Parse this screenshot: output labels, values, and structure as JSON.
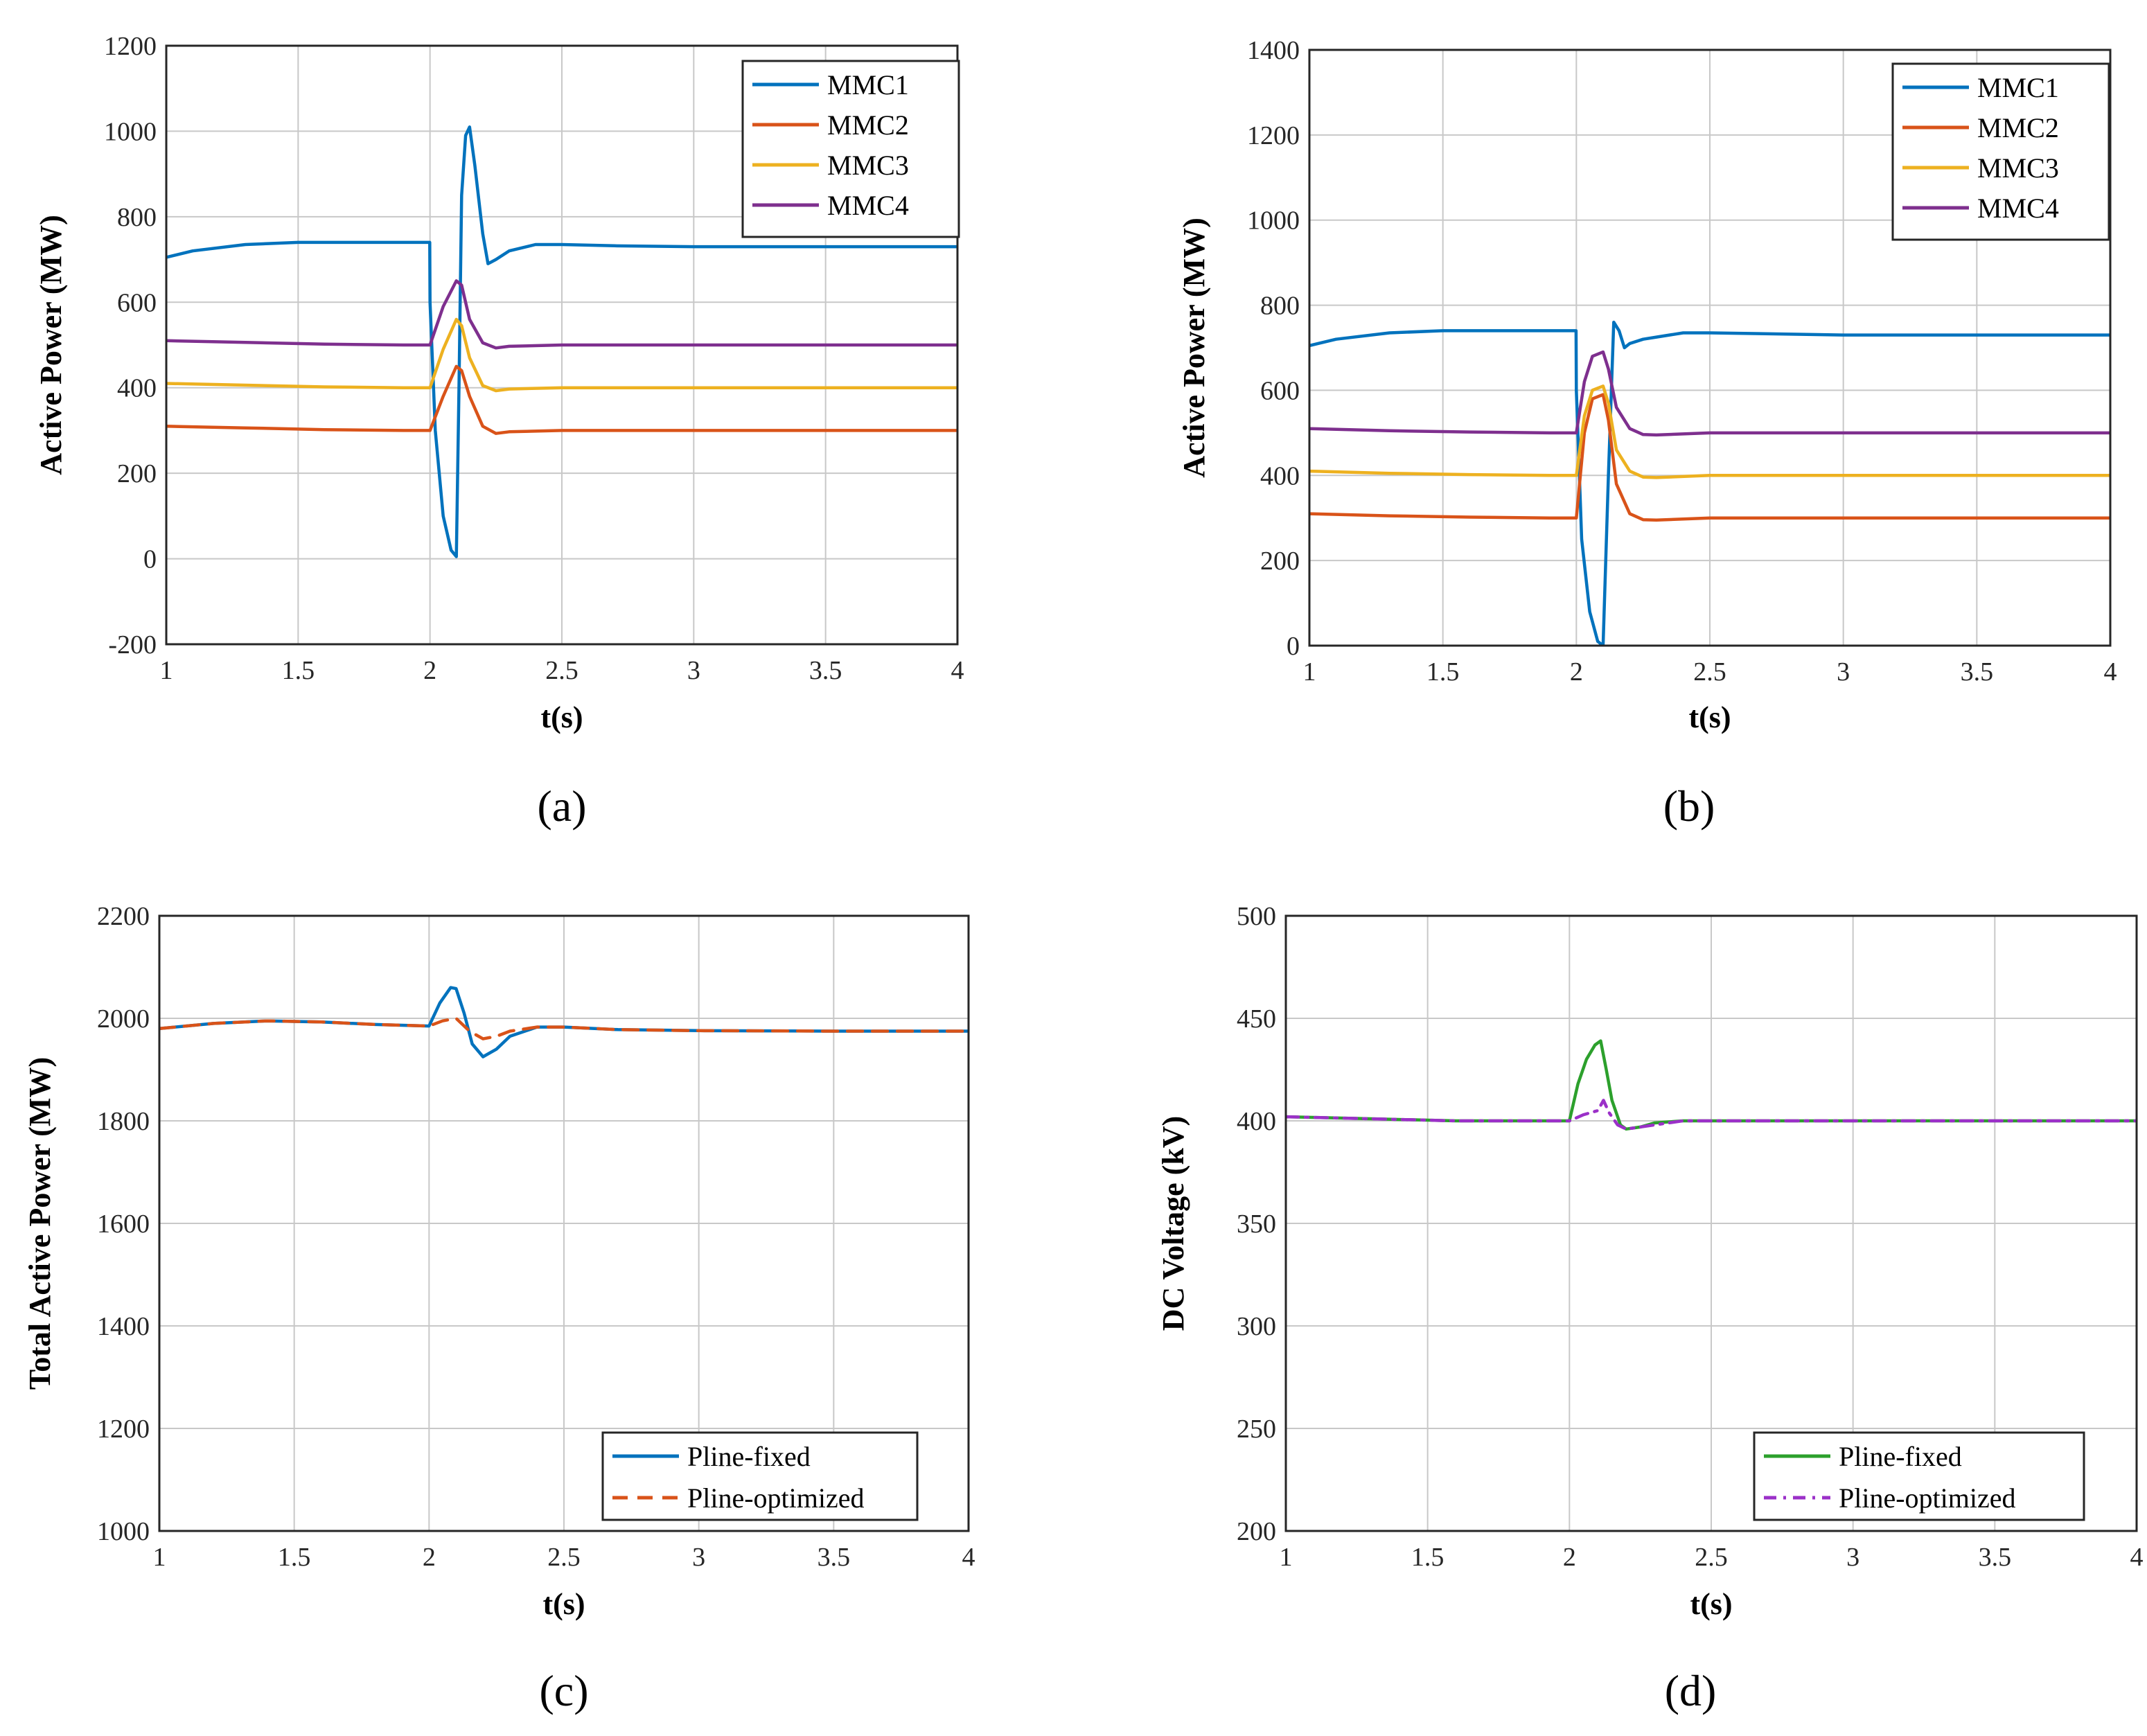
{
  "chart_data": [
    {
      "type": "line",
      "panel_label": "(a)",
      "xlabel": "t(s)",
      "ylabel": "Active Power (MW)",
      "xlim": [
        1,
        4
      ],
      "ylim": [
        -200,
        1200
      ],
      "xticks": [
        1,
        1.5,
        2,
        2.5,
        3,
        3.5,
        4
      ],
      "xtick_labels": [
        "1",
        "1.5",
        "2",
        "2.5",
        "3",
        "3.5",
        "4"
      ],
      "yticks": [
        -200,
        0,
        200,
        400,
        600,
        800,
        1000,
        1200
      ],
      "ytick_labels": [
        "-200",
        "0",
        "200",
        "400",
        "600",
        "800",
        "1000",
        "1200"
      ],
      "grid": true,
      "legend_position": "top-right",
      "series": [
        {
          "name": "MMC1",
          "color": "#0072BD",
          "dash": "solid",
          "x": [
            1,
            1.1,
            1.3,
            1.5,
            1.7,
            1.9,
            1.999,
            2.0,
            2.02,
            2.05,
            2.08,
            2.1,
            2.11,
            2.12,
            2.135,
            2.15,
            2.17,
            2.2,
            2.22,
            2.25,
            2.3,
            2.4,
            2.5,
            2.7,
            3.0,
            3.5,
            4
          ],
          "y": [
            705,
            720,
            735,
            740,
            740,
            740,
            740,
            600,
            300,
            100,
            20,
            5,
            400,
            850,
            990,
            1010,
            920,
            760,
            690,
            700,
            720,
            735,
            735,
            732,
            730,
            730,
            730
          ]
        },
        {
          "name": "MMC2",
          "color": "#D95319",
          "dash": "solid",
          "x": [
            1,
            1.3,
            1.6,
            1.9,
            2.0,
            2.05,
            2.1,
            2.12,
            2.15,
            2.2,
            2.25,
            2.3,
            2.5,
            3,
            4
          ],
          "y": [
            310,
            306,
            302,
            300,
            300,
            380,
            450,
            440,
            380,
            310,
            293,
            297,
            300,
            300,
            300
          ]
        },
        {
          "name": "MMC3",
          "color": "#EDB120",
          "dash": "solid",
          "x": [
            1,
            1.3,
            1.6,
            1.9,
            2.0,
            2.05,
            2.1,
            2.12,
            2.15,
            2.2,
            2.25,
            2.3,
            2.5,
            3,
            4
          ],
          "y": [
            410,
            406,
            402,
            400,
            400,
            490,
            560,
            545,
            470,
            405,
            393,
            397,
            400,
            400,
            400
          ]
        },
        {
          "name": "MMC4",
          "color": "#7E2F8E",
          "dash": "solid",
          "x": [
            1,
            1.3,
            1.6,
            1.9,
            2.0,
            2.05,
            2.1,
            2.12,
            2.15,
            2.2,
            2.25,
            2.3,
            2.5,
            3,
            4
          ],
          "y": [
            510,
            506,
            502,
            500,
            500,
            590,
            650,
            640,
            560,
            505,
            493,
            497,
            500,
            500,
            500
          ]
        }
      ]
    },
    {
      "type": "line",
      "panel_label": "(b)",
      "xlabel": "t(s)",
      "ylabel": "Active Power (MW)",
      "xlim": [
        1,
        4
      ],
      "ylim": [
        0,
        1400
      ],
      "xticks": [
        1,
        1.5,
        2,
        2.5,
        3,
        3.5,
        4
      ],
      "xtick_labels": [
        "1",
        "1.5",
        "2",
        "2.5",
        "3",
        "3.5",
        "4"
      ],
      "yticks": [
        0,
        200,
        400,
        600,
        800,
        1000,
        1200,
        1400
      ],
      "ytick_labels": [
        "0",
        "200",
        "400",
        "600",
        "800",
        "1000",
        "1200",
        "1400"
      ],
      "grid": true,
      "legend_position": "top-right",
      "series": [
        {
          "name": "MMC1",
          "color": "#0072BD",
          "dash": "solid",
          "x": [
            1,
            1.1,
            1.3,
            1.5,
            1.7,
            1.9,
            1.999,
            2.0,
            2.02,
            2.05,
            2.08,
            2.1,
            2.12,
            2.14,
            2.16,
            2.18,
            2.2,
            2.25,
            2.3,
            2.4,
            2.5,
            3,
            4
          ],
          "y": [
            705,
            720,
            735,
            740,
            740,
            740,
            740,
            600,
            250,
            80,
            10,
            0,
            400,
            760,
            740,
            700,
            710,
            720,
            725,
            735,
            735,
            730,
            730
          ]
        },
        {
          "name": "MMC2",
          "color": "#D95319",
          "dash": "solid",
          "x": [
            1,
            1.3,
            1.6,
            1.9,
            2.0,
            2.03,
            2.06,
            2.1,
            2.12,
            2.15,
            2.2,
            2.25,
            2.3,
            2.5,
            3,
            4
          ],
          "y": [
            310,
            305,
            302,
            300,
            300,
            500,
            580,
            590,
            530,
            380,
            310,
            296,
            295,
            300,
            300,
            300
          ]
        },
        {
          "name": "MMC3",
          "color": "#EDB120",
          "dash": "solid",
          "x": [
            1,
            1.3,
            1.6,
            1.9,
            2.0,
            2.03,
            2.06,
            2.1,
            2.12,
            2.15,
            2.2,
            2.25,
            2.3,
            2.5,
            3,
            4
          ],
          "y": [
            410,
            405,
            402,
            400,
            400,
            540,
            600,
            610,
            570,
            460,
            410,
            396,
            395,
            400,
            400,
            400
          ]
        },
        {
          "name": "MMC4",
          "color": "#7E2F8E",
          "dash": "solid",
          "x": [
            1,
            1.3,
            1.6,
            1.9,
            2.0,
            2.03,
            2.06,
            2.1,
            2.12,
            2.15,
            2.2,
            2.25,
            2.3,
            2.5,
            3,
            4
          ],
          "y": [
            510,
            505,
            502,
            500,
            500,
            620,
            680,
            690,
            650,
            560,
            510,
            496,
            495,
            500,
            500,
            500
          ]
        }
      ]
    },
    {
      "type": "line",
      "panel_label": "(c)",
      "xlabel": "t(s)",
      "ylabel": "Total Active Power (MW)",
      "xlim": [
        1,
        4
      ],
      "ylim": [
        1000,
        2200
      ],
      "xticks": [
        1,
        1.5,
        2,
        2.5,
        3,
        3.5,
        4
      ],
      "xtick_labels": [
        "1",
        "1.5",
        "2",
        "2.5",
        "3",
        "3.5",
        "4"
      ],
      "yticks": [
        1000,
        1200,
        1400,
        1600,
        1800,
        2000,
        2200
      ],
      "ytick_labels": [
        "1000",
        "1200",
        "1400",
        "1600",
        "1800",
        "2000",
        "2200"
      ],
      "grid": true,
      "legend_position": "bottom-right",
      "series": [
        {
          "name": "Pline-fixed",
          "color": "#0072BD",
          "dash": "solid",
          "x": [
            1,
            1.2,
            1.4,
            1.6,
            1.8,
            2.0,
            2.04,
            2.08,
            2.1,
            2.13,
            2.16,
            2.2,
            2.25,
            2.3,
            2.4,
            2.5,
            2.7,
            3,
            3.5,
            4
          ],
          "y": [
            1980,
            1990,
            1995,
            1993,
            1988,
            1985,
            2030,
            2060,
            2058,
            2010,
            1950,
            1925,
            1940,
            1965,
            1983,
            1983,
            1978,
            1976,
            1975,
            1975
          ]
        },
        {
          "name": "Pline-optimized",
          "color": "#D95319",
          "dash": "dashed",
          "x": [
            1,
            1.2,
            1.4,
            1.6,
            1.8,
            2.0,
            2.05,
            2.1,
            2.15,
            2.2,
            2.25,
            2.3,
            2.4,
            2.5,
            2.7,
            3,
            3.5,
            4
          ],
          "y": [
            1980,
            1990,
            1995,
            1993,
            1988,
            1985,
            1995,
            2000,
            1975,
            1960,
            1965,
            1975,
            1983,
            1983,
            1978,
            1976,
            1975,
            1975
          ]
        }
      ]
    },
    {
      "type": "line",
      "panel_label": "(d)",
      "xlabel": "t(s)",
      "ylabel": "DC Voltage (kV)",
      "xlim": [
        1,
        4
      ],
      "ylim": [
        200,
        500
      ],
      "xticks": [
        1,
        1.5,
        2,
        2.5,
        3,
        3.5,
        4
      ],
      "xtick_labels": [
        "1",
        "1.5",
        "2",
        "2.5",
        "3",
        "3.5",
        "4"
      ],
      "yticks": [
        200,
        250,
        300,
        350,
        400,
        450,
        500
      ],
      "ytick_labels": [
        "200",
        "250",
        "300",
        "350",
        "400",
        "450",
        "500"
      ],
      "grid": true,
      "legend_position": "bottom-right",
      "series": [
        {
          "name": "Pline-fixed",
          "color": "#2CA02C",
          "dash": "solid",
          "x": [
            1,
            1.3,
            1.6,
            1.9,
            2.0,
            2.03,
            2.06,
            2.09,
            2.11,
            2.13,
            2.15,
            2.18,
            2.2,
            2.25,
            2.3,
            2.4,
            2.5,
            3,
            4
          ],
          "y": [
            402,
            401,
            400,
            400,
            400,
            418,
            430,
            437,
            439,
            425,
            410,
            398,
            396,
            397,
            399,
            400,
            400,
            400,
            400
          ]
        },
        {
          "name": "Pline-optimized",
          "color": "#9B30C8",
          "dash": "dashdot",
          "x": [
            1,
            1.3,
            1.6,
            1.9,
            2.0,
            2.05,
            2.1,
            2.12,
            2.14,
            2.17,
            2.2,
            2.25,
            2.3,
            2.4,
            2.5,
            3,
            4
          ],
          "y": [
            402,
            401,
            400,
            400,
            400,
            403,
            405,
            410,
            404,
            398,
            396,
            397,
            398,
            400,
            400,
            400,
            400
          ]
        }
      ]
    }
  ]
}
